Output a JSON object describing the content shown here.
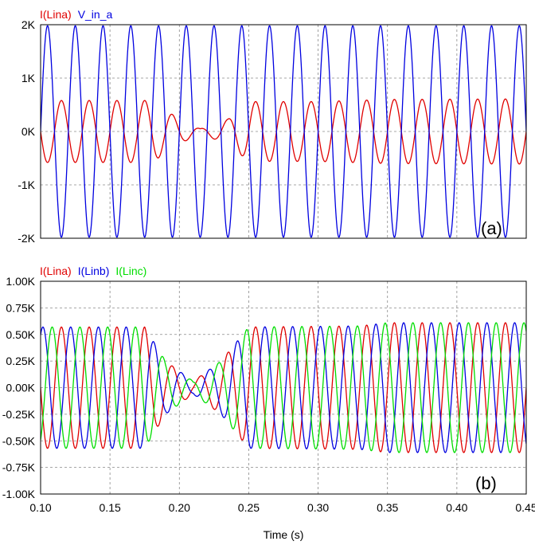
{
  "chart_data": [
    {
      "type": "line",
      "panel_label": "(a)",
      "legend_placement": "top-left",
      "grid": true,
      "xlim": [
        0.1,
        0.45
      ],
      "ylim": [
        -2000,
        2000
      ],
      "yticks": [
        {
          "value": 2000,
          "label": "2K"
        },
        {
          "value": 1000,
          "label": "1K"
        },
        {
          "value": 0,
          "label": "0K"
        },
        {
          "value": -1000,
          "label": "-1K"
        },
        {
          "value": -2000,
          "label": "-2K"
        }
      ],
      "series": [
        {
          "name": "I(Lina)",
          "color": "#e00000",
          "waveform": "sine",
          "frequency_hz": 50,
          "phase_deg": 180,
          "amplitude_envelope": [
            [
              0.1,
              580
            ],
            [
              0.18,
              580
            ],
            [
              0.2,
              230
            ],
            [
              0.215,
              50
            ],
            [
              0.235,
              230
            ],
            [
              0.25,
              560
            ],
            [
              0.3,
              560
            ],
            [
              0.35,
              600
            ],
            [
              0.45,
              610
            ]
          ]
        },
        {
          "name": "V_in_a",
          "color": "#0000e0",
          "waveform": "sine",
          "frequency_hz": 50,
          "phase_deg": 0,
          "amplitude_envelope": [
            [
              0.1,
              1980
            ],
            [
              0.45,
              1980
            ]
          ]
        }
      ]
    },
    {
      "type": "line",
      "panel_label": "(b)",
      "legend_placement": "top-left",
      "grid": true,
      "xlim": [
        0.1,
        0.45
      ],
      "ylim": [
        -1000,
        1000
      ],
      "xlabel": "Time (s)",
      "xticks": [
        {
          "value": 0.1,
          "label": "0.10"
        },
        {
          "value": 0.15,
          "label": "0.15"
        },
        {
          "value": 0.2,
          "label": "0.20"
        },
        {
          "value": 0.25,
          "label": "0.25"
        },
        {
          "value": 0.3,
          "label": "0.30"
        },
        {
          "value": 0.35,
          "label": "0.35"
        },
        {
          "value": 0.4,
          "label": "0.40"
        },
        {
          "value": 0.45,
          "label": "0.45"
        }
      ],
      "yticks": [
        {
          "value": 1000,
          "label": "1.00K"
        },
        {
          "value": 750,
          "label": "0.75K"
        },
        {
          "value": 500,
          "label": "0.50K"
        },
        {
          "value": 250,
          "label": "0.25K"
        },
        {
          "value": 0,
          "label": "0.00K"
        },
        {
          "value": -250,
          "label": "-0.25K"
        },
        {
          "value": -500,
          "label": "-0.50K"
        },
        {
          "value": -750,
          "label": "-0.75K"
        },
        {
          "value": -1000,
          "label": "-1.00K"
        }
      ],
      "series": [
        {
          "name": "I(Lina)",
          "color": "#e00000",
          "waveform": "sine",
          "frequency_hz": 50,
          "phase_deg": 180,
          "amplitude_envelope": [
            [
              0.1,
              570
            ],
            [
              0.175,
              570
            ],
            [
              0.19,
              250
            ],
            [
              0.21,
              60
            ],
            [
              0.23,
              250
            ],
            [
              0.25,
              570
            ],
            [
              0.33,
              580
            ],
            [
              0.35,
              610
            ],
            [
              0.45,
              610
            ]
          ]
        },
        {
          "name": "I(Linb)",
          "color": "#0000e0",
          "waveform": "sine",
          "frequency_hz": 50,
          "phase_deg": 60,
          "amplitude_envelope": [
            [
              0.1,
              570
            ],
            [
              0.175,
              570
            ],
            [
              0.19,
              250
            ],
            [
              0.21,
              60
            ],
            [
              0.23,
              250
            ],
            [
              0.25,
              570
            ],
            [
              0.33,
              580
            ],
            [
              0.35,
              610
            ],
            [
              0.45,
              610
            ]
          ]
        },
        {
          "name": "I(Linc)",
          "color": "#00dd00",
          "waveform": "sine",
          "frequency_hz": 50,
          "phase_deg": -60,
          "amplitude_envelope": [
            [
              0.1,
              570
            ],
            [
              0.175,
              570
            ],
            [
              0.19,
              250
            ],
            [
              0.21,
              60
            ],
            [
              0.23,
              250
            ],
            [
              0.25,
              570
            ],
            [
              0.33,
              580
            ],
            [
              0.35,
              610
            ],
            [
              0.45,
              610
            ]
          ]
        }
      ]
    }
  ]
}
